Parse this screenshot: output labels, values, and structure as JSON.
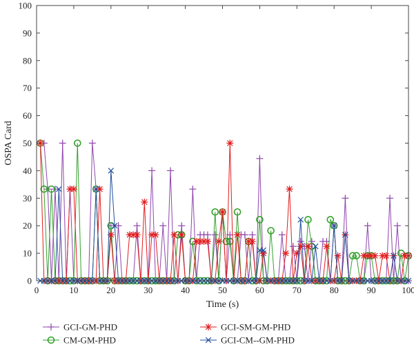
{
  "chart_data": {
    "type": "line",
    "xlabel": "Time (s)",
    "ylabel": "OSPA Card",
    "xlim": [
      0,
      100
    ],
    "ylim": [
      0,
      100
    ],
    "xticks": [
      0,
      10,
      20,
      30,
      40,
      50,
      60,
      70,
      80,
      90,
      100
    ],
    "yticks": [
      0,
      10,
      20,
      30,
      40,
      50,
      60,
      70,
      80,
      90,
      100
    ],
    "grid": false,
    "legend_position": "bottom",
    "x": [
      1,
      2,
      3,
      4,
      5,
      6,
      7,
      8,
      9,
      10,
      11,
      12,
      13,
      14,
      15,
      16,
      17,
      18,
      19,
      20,
      21,
      22,
      23,
      24,
      25,
      26,
      27,
      28,
      29,
      30,
      31,
      32,
      33,
      34,
      35,
      36,
      37,
      38,
      39,
      40,
      41,
      42,
      43,
      44,
      45,
      46,
      47,
      48,
      49,
      50,
      51,
      52,
      53,
      54,
      55,
      56,
      57,
      58,
      59,
      60,
      61,
      62,
      63,
      64,
      65,
      66,
      67,
      68,
      69,
      70,
      71,
      72,
      73,
      74,
      75,
      76,
      77,
      78,
      79,
      80,
      81,
      82,
      83,
      84,
      85,
      86,
      87,
      88,
      89,
      90,
      91,
      92,
      93,
      94,
      95,
      96,
      97,
      98,
      99,
      100
    ],
    "series": [
      {
        "name": "GCI-GM-PHD",
        "color": "#8e44ad",
        "marker": "plus",
        "values": [
          50,
          50,
          33.3,
          0,
          33.3,
          0,
          50,
          0,
          33.3,
          0,
          0,
          0,
          0,
          0,
          50,
          33.3,
          0,
          0,
          0,
          20,
          0,
          20,
          0,
          0,
          0,
          0,
          20,
          0,
          0,
          0,
          40,
          0,
          0,
          20,
          0,
          40,
          0,
          0,
          20,
          0,
          0,
          33.3,
          0,
          16.7,
          16.7,
          16.7,
          0,
          16.7,
          0,
          25,
          0,
          16.7,
          0,
          0,
          16.7,
          16.7,
          0,
          16.7,
          0,
          44.4,
          0,
          0,
          0,
          0,
          0,
          16.7,
          0,
          0,
          12.5,
          0,
          14.3,
          12.5,
          0,
          14.3,
          0,
          0,
          14.3,
          14.3,
          0,
          20,
          0,
          0,
          30,
          0,
          0,
          0,
          0,
          0,
          20,
          0,
          0,
          0,
          0,
          0,
          30,
          0,
          20,
          0,
          0,
          0
        ]
      },
      {
        "name": "CM-GM-PHD",
        "color": "#33a02c",
        "marker": "circle",
        "values": [
          50,
          33.3,
          0,
          33.3,
          0,
          0,
          0,
          0,
          0,
          0,
          50,
          0,
          0,
          0,
          0,
          33.3,
          0,
          0,
          0,
          20,
          0,
          0,
          0,
          0,
          0,
          0,
          0,
          0,
          0,
          0,
          0,
          0,
          0,
          0,
          0,
          0,
          0,
          16.7,
          16.7,
          0,
          0,
          14.3,
          0,
          0,
          0,
          0,
          0,
          25,
          0,
          25,
          14.3,
          14.3,
          0,
          25,
          0,
          0,
          14.3,
          0,
          0,
          22.2,
          0,
          0,
          18.2,
          0,
          0,
          0,
          0,
          0,
          0,
          0,
          0,
          0,
          22.2,
          12.5,
          0,
          0,
          0,
          0,
          22.2,
          20,
          0,
          0,
          0,
          0,
          9.1,
          9.1,
          0,
          0,
          9.1,
          9.1,
          0,
          0,
          0,
          0,
          0,
          0,
          0,
          10,
          0,
          9.1
        ]
      },
      {
        "name": "GCI-SM-GM-PHD",
        "color": "#e31a1c",
        "marker": "asterisk",
        "values": [
          50,
          0,
          0,
          0,
          0,
          0,
          0,
          0,
          33.3,
          33.3,
          0,
          0,
          0,
          0,
          0,
          0,
          33.3,
          0,
          0,
          16.7,
          0,
          0,
          0,
          0,
          16.7,
          16.7,
          16.7,
          0,
          28.6,
          0,
          16.7,
          16.7,
          0,
          0,
          0,
          0,
          16.7,
          0,
          16.7,
          0,
          0,
          0,
          14.3,
          14.3,
          14.3,
          14.3,
          0,
          0,
          14.3,
          25,
          0,
          50,
          0,
          16.7,
          0,
          0,
          14.3,
          14.3,
          0,
          0,
          10,
          0,
          0,
          0,
          0,
          0,
          10,
          33.3,
          0,
          10,
          12.5,
          0,
          12.5,
          0,
          0,
          0,
          0,
          12.5,
          0,
          0,
          9.1,
          0,
          16.7,
          0,
          0,
          0,
          0,
          9.1,
          9.1,
          9.1,
          9.1,
          0,
          9.1,
          9.1,
          0,
          9.1,
          0,
          0,
          9.1,
          9.1
        ]
      },
      {
        "name": "GCI-CM--GM-PHD",
        "color": "#1f4e9c",
        "marker": "x",
        "values": [
          0,
          0,
          0,
          0,
          0,
          33.3,
          0,
          0,
          0,
          0,
          0,
          0,
          0,
          0,
          0,
          33.3,
          0,
          0,
          0,
          40,
          20,
          0,
          0,
          0,
          0,
          0,
          0,
          0,
          0,
          0,
          0,
          0,
          0,
          0,
          0,
          0,
          0,
          0,
          0,
          0,
          0,
          0,
          0,
          0,
          0,
          0,
          0,
          0,
          0,
          0,
          0,
          0,
          0,
          0,
          0,
          0,
          0,
          0,
          0,
          11.1,
          11.1,
          0,
          0,
          0,
          0,
          0,
          0,
          0,
          0,
          0,
          22.2,
          0,
          0,
          0,
          12.5,
          0,
          0,
          0,
          0,
          20,
          0,
          0,
          16.7,
          0,
          0,
          0,
          0,
          0,
          0,
          0,
          0,
          0,
          0,
          0,
          0,
          9.1,
          0,
          0,
          0,
          0
        ]
      }
    ]
  }
}
